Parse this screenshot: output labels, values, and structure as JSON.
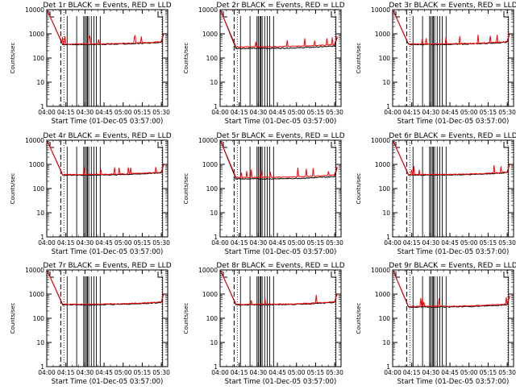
{
  "chart_data": {
    "type": "line",
    "ylabel": "Counts/sec",
    "xlabel": "Start Time (01-Dec-05 03:57:00)",
    "yscale": "log",
    "ylim": [
      1,
      10000
    ],
    "xlim": [
      "04:00",
      "05:35"
    ],
    "x_tick_labels": [
      "04:00",
      "04:15",
      "04:30",
      "04:45",
      "05:00",
      "05:15",
      "05:30"
    ],
    "y_tick_labels": [
      "1",
      "10",
      "100",
      "1000",
      "10000"
    ],
    "corner_mark": "L",
    "grid": false,
    "series_colors": {
      "events": "#000000",
      "lld": "#ff0000"
    },
    "panels": [
      {
        "title": "Det 1r BLACK = Events, RED = LLD",
        "baseline_events": 360,
        "baseline_lld": 380
      },
      {
        "title": "Det 2r BLACK = Events, RED = LLD",
        "baseline_events": 250,
        "baseline_lld": 290
      },
      {
        "title": "Det 3r BLACK = Events, RED = LLD",
        "baseline_events": 360,
        "baseline_lld": 380
      },
      {
        "title": "Det 4r BLACK = Events, RED = LLD",
        "baseline_events": 360,
        "baseline_lld": 380
      },
      {
        "title": "Det 5r BLACK = Events, RED = LLD",
        "baseline_events": 250,
        "baseline_lld": 290
      },
      {
        "title": "Det 6r BLACK = Events, RED = LLD",
        "baseline_events": 360,
        "baseline_lld": 380
      },
      {
        "title": "Det 7r BLACK = Events, RED = LLD",
        "baseline_events": 360,
        "baseline_lld": 380
      },
      {
        "title": "Det 8r BLACK = Events, RED = LLD",
        "baseline_events": 360,
        "baseline_lld": 380
      },
      {
        "title": "Det 9r BLACK = Events, RED = LLD",
        "baseline_events": 290,
        "baseline_lld": 310
      }
    ]
  }
}
